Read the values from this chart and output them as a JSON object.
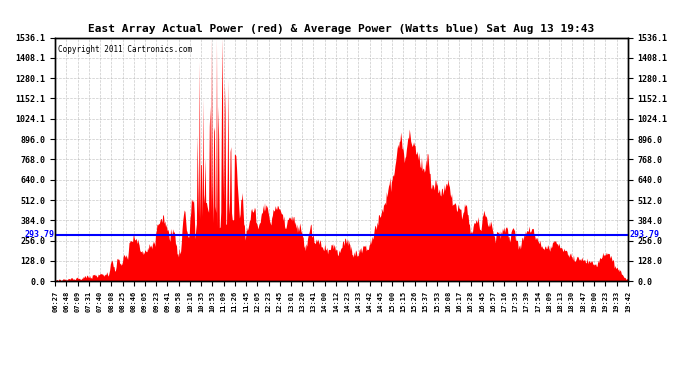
{
  "title": "East Array Actual Power (red) & Average Power (Watts blue) Sat Aug 13 19:43",
  "copyright": "Copyright 2011 Cartronics.com",
  "yticks": [
    0.0,
    128.0,
    256.0,
    384.0,
    512.0,
    640.0,
    768.0,
    896.0,
    1024.1,
    1152.1,
    1280.1,
    1408.1,
    1536.1
  ],
  "ymin": 0.0,
  "ymax": 1536.1,
  "average_line": 293.79,
  "xtick_labels": [
    "06:27",
    "06:48",
    "07:09",
    "07:31",
    "07:40",
    "08:08",
    "08:25",
    "08:46",
    "09:05",
    "09:23",
    "09:41",
    "09:58",
    "10:16",
    "10:35",
    "10:53",
    "11:09",
    "11:26",
    "11:45",
    "12:05",
    "12:23",
    "12:45",
    "13:01",
    "13:20",
    "13:41",
    "14:00",
    "14:12",
    "14:23",
    "14:33",
    "14:42",
    "14:45",
    "15:00",
    "15:15",
    "15:26",
    "15:37",
    "15:53",
    "16:08",
    "16:17",
    "16:28",
    "16:45",
    "16:57",
    "17:16",
    "17:35",
    "17:39",
    "17:54",
    "18:09",
    "18:13",
    "18:30",
    "18:47",
    "19:00",
    "19:23",
    "19:33",
    "19:42"
  ],
  "red_color": "#ff0000",
  "blue_color": "#0000ff",
  "bg_color": "#ffffff",
  "grid_color": "#bbbbbb",
  "title_color": "#000000",
  "copyright_color": "#000000",
  "avg_label": "293.79"
}
